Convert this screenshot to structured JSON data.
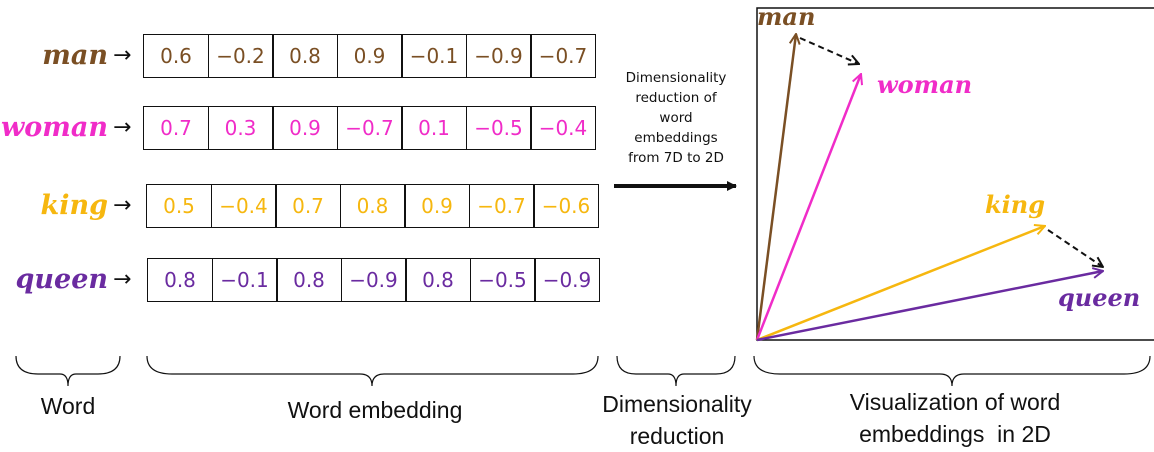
{
  "colors": {
    "man": "#7a4f24",
    "woman": "#f02cc8",
    "king": "#f6b70f",
    "queen": "#6a2ba0",
    "ink": "#111111"
  },
  "rows": [
    {
      "word": "man",
      "arrow": "→",
      "values": [
        "0.6",
        "−0.2",
        "0.8",
        "0.9",
        "−0.1",
        "−0.9",
        "−0.7"
      ]
    },
    {
      "word": "woman",
      "arrow": "→",
      "values": [
        "0.7",
        "0.3",
        "0.9",
        "−0.7",
        "0.1",
        "−0.5",
        "−0.4"
      ]
    },
    {
      "word": "king",
      "arrow": "→",
      "values": [
        "0.5",
        "−0.4",
        "0.7",
        "0.8",
        "0.9",
        "−0.7",
        "−0.6"
      ]
    },
    {
      "word": "queen",
      "arrow": "→",
      "values": [
        "0.8",
        "−0.1",
        "0.8",
        "−0.9",
        "0.8",
        "−0.5",
        "−0.9"
      ]
    }
  ],
  "reduction": {
    "lines": [
      "Dimensionality",
      "reduction of",
      "word",
      "embeddings",
      "from 7D to 2D"
    ]
  },
  "plot": {
    "labels": {
      "man": "man",
      "woman": "woman",
      "king": "king",
      "queen": "queen"
    }
  },
  "captions": {
    "word": "Word",
    "embedding": "Word embedding",
    "reduction": [
      "Dimensionality",
      "reduction"
    ],
    "visualization": [
      "Visualization of word",
      "embeddings  in 2D"
    ]
  }
}
